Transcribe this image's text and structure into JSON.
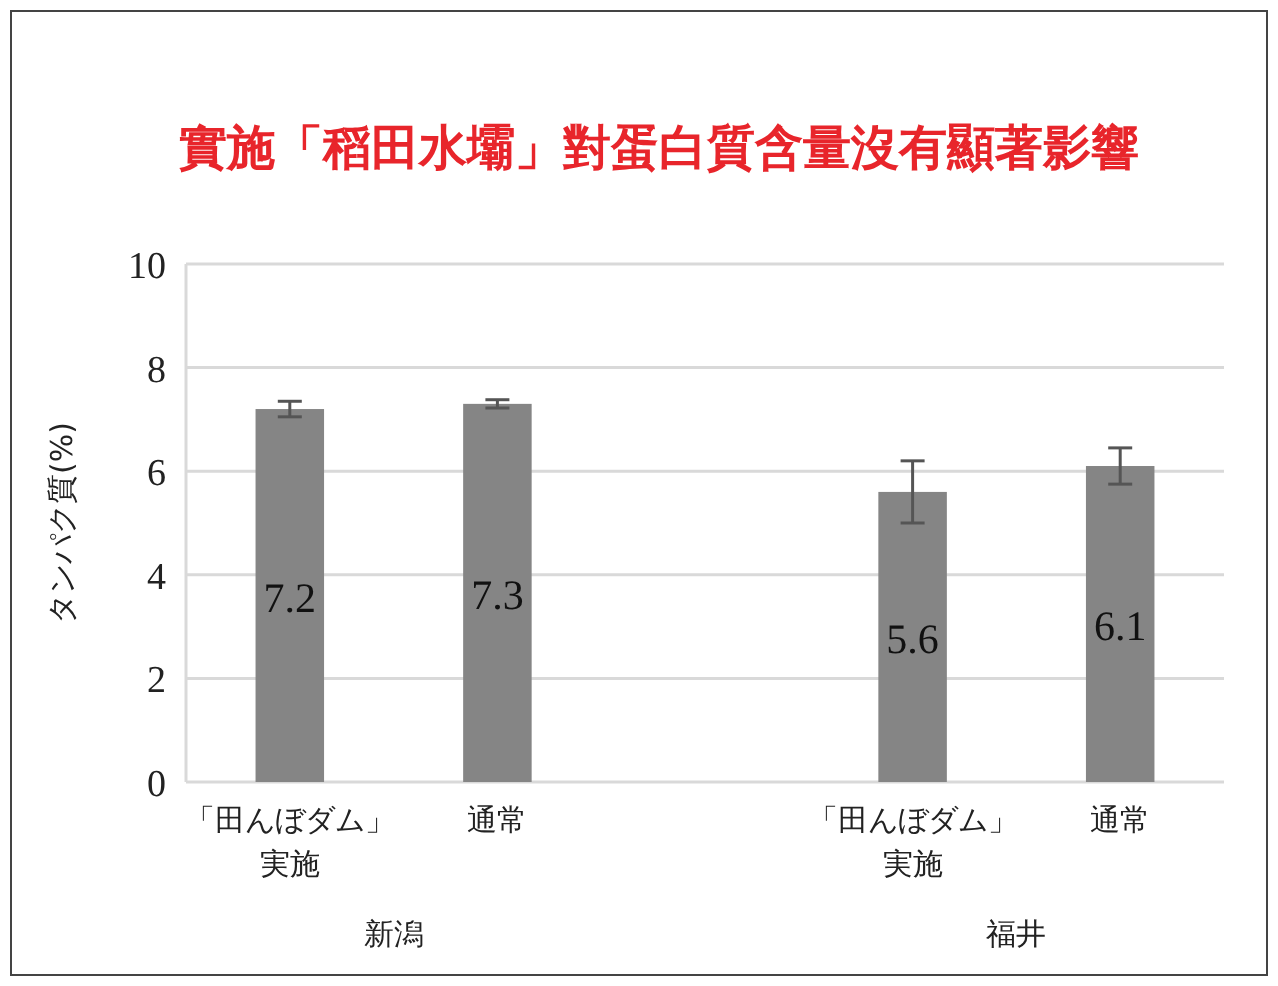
{
  "chart_data": {
    "type": "bar",
    "title": "實施「稻田水壩」對蛋白質含量沒有顯著影響",
    "ylabel": "タンパク質(%)",
    "categories": [
      "「田んぼダム」実施",
      "通常",
      null,
      "「田んぼダム」実施",
      "通常"
    ],
    "values": [
      7.2,
      7.3,
      null,
      5.6,
      6.1
    ],
    "errors": [
      0.15,
      0.08,
      null,
      0.6,
      0.35
    ],
    "color": "#858585",
    "data_labels": true,
    "ylim": [
      0,
      10
    ],
    "yticks": [
      0,
      2,
      4,
      6,
      8,
      10
    ],
    "grid": "y",
    "annotations": [
      "新潟",
      "福井"
    ]
  }
}
